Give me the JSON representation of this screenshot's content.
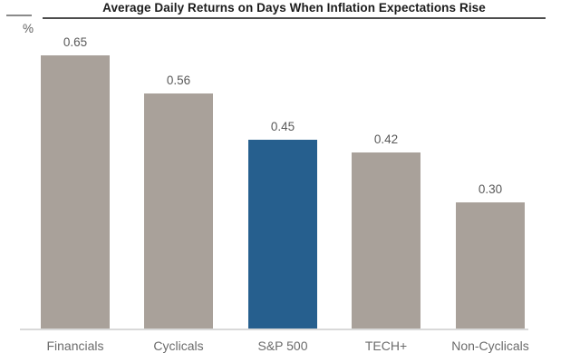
{
  "header": {
    "title": "Average Daily Returns on Days When Inflation Expectations Rise",
    "unit_label": "%"
  },
  "chart_data": {
    "type": "bar",
    "title": "Average Daily Returns on Days When Inflation Expectations Rise",
    "categories": [
      "Financials",
      "Cyclicals",
      "S&P 500",
      "TECH+",
      "Non-Cyclicals"
    ],
    "values": [
      0.65,
      0.56,
      0.45,
      0.42,
      0.3
    ],
    "value_labels": [
      "0.65",
      "0.56",
      "0.45",
      "0.42",
      "0.30"
    ],
    "xlabel": "",
    "ylabel": "%",
    "ylim": [
      0,
      0.78
    ],
    "grid": "off",
    "legend": "none",
    "highlight_category": "S&P 500",
    "colors": {
      "bar_default": "#a9a19a",
      "bar_highlight": "#265f8e",
      "title_text": "#1b1b1b",
      "title_rule": "#4d4d4d",
      "baseline": "#d9d9d9",
      "value_label_text": "#595959",
      "category_label_text": "#6b6b6b"
    }
  }
}
